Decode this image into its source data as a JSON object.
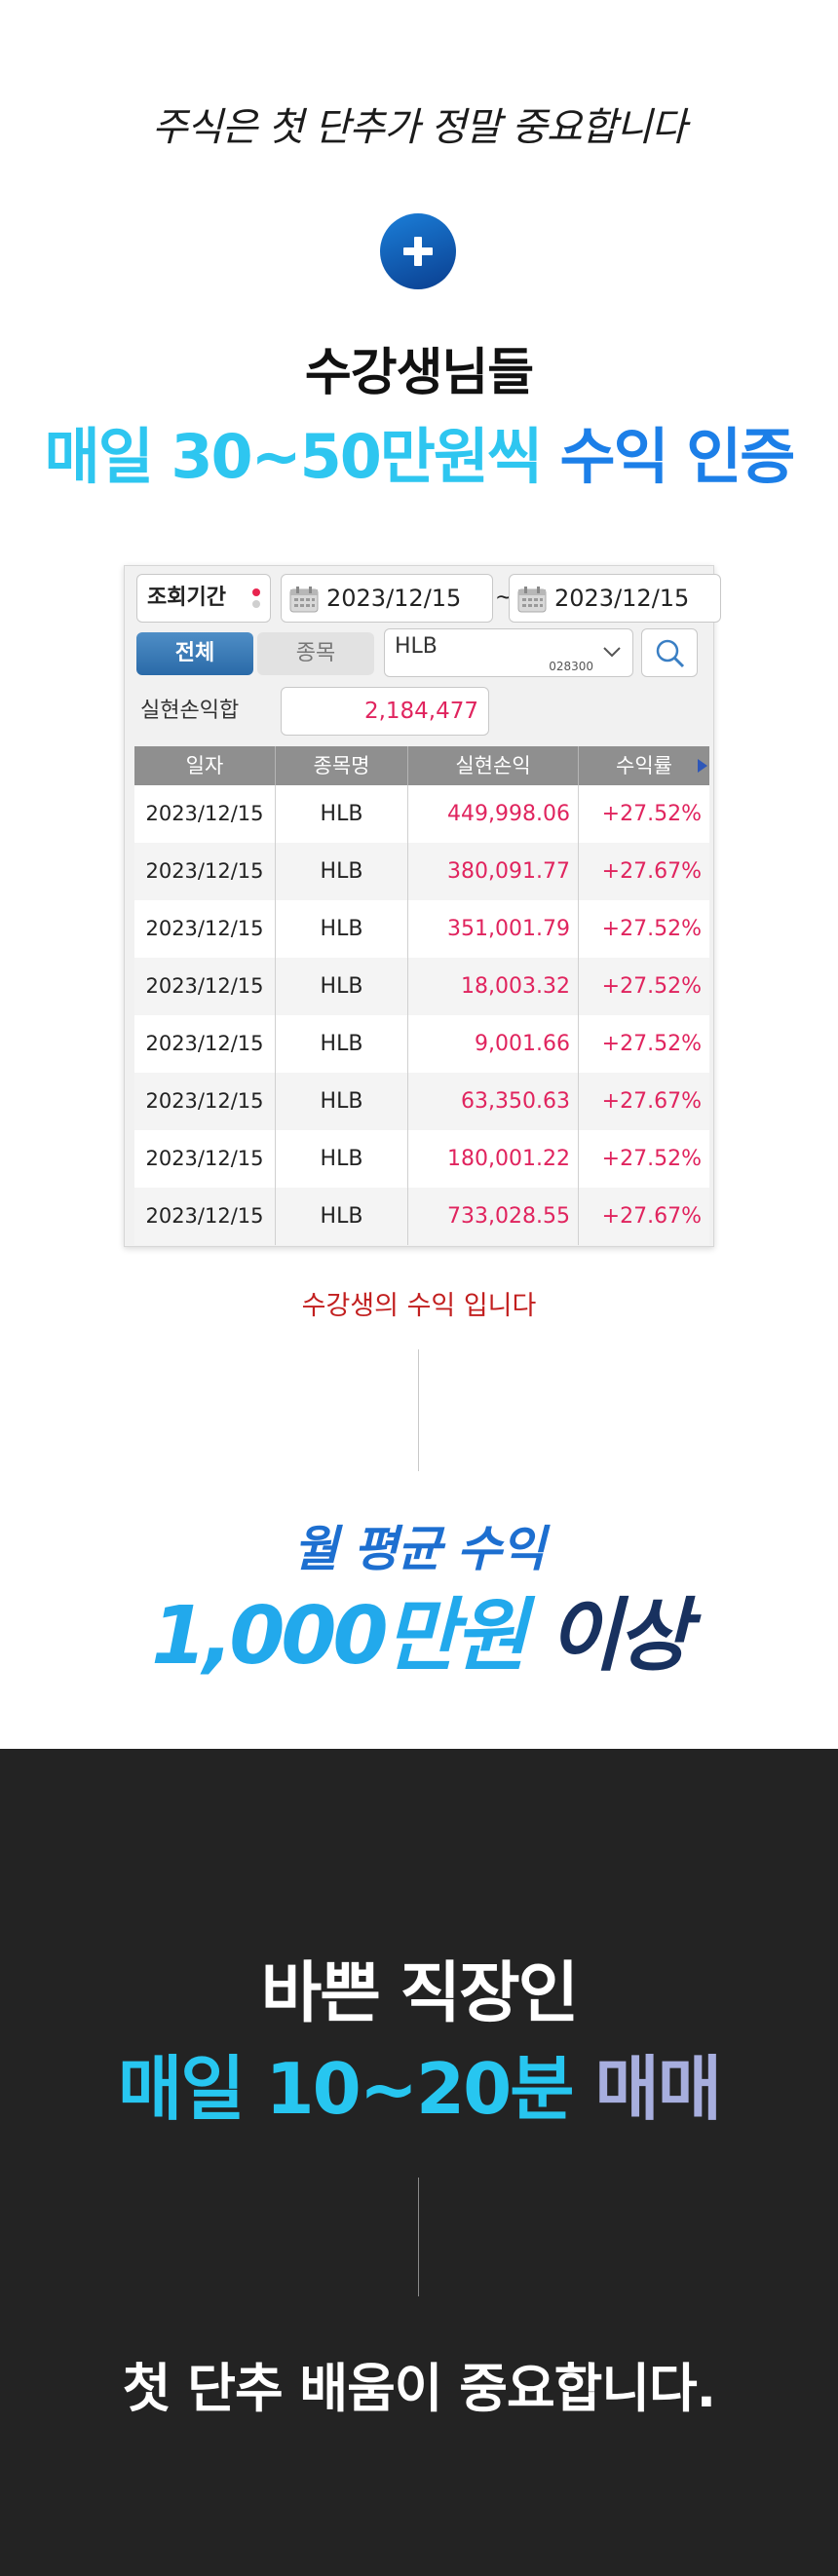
{
  "intro": {
    "headline": "주식은 첫 단추가 정말 중요합니다",
    "plus_icon": "plus-circle-icon",
    "subtitle": "수강생님들",
    "proof_part1": "매일 30~50만원씩",
    "proof_part2": " 수익 인증"
  },
  "trading_panel": {
    "period_label": "조회기간",
    "date_from": "2023/12/15",
    "date_separator": "~",
    "date_to": "2023/12/15",
    "tab_all": "전체",
    "tab_item": "종목",
    "symbol_value": "HLB",
    "symbol_code": "028300",
    "realized_pnl_label": "실현손익합",
    "realized_pnl_value": "2,184,477",
    "columns": [
      "일자",
      "종목명",
      "실현손익",
      "수익률"
    ],
    "rows": [
      {
        "date": "2023/12/15",
        "name": "HLB",
        "pnl": "449,998.06",
        "rate": "+27.52%"
      },
      {
        "date": "2023/12/15",
        "name": "HLB",
        "pnl": "380,091.77",
        "rate": "+27.67%"
      },
      {
        "date": "2023/12/15",
        "name": "HLB",
        "pnl": "351,001.79",
        "rate": "+27.52%"
      },
      {
        "date": "2023/12/15",
        "name": "HLB",
        "pnl": "18,003.32",
        "rate": "+27.52%"
      },
      {
        "date": "2023/12/15",
        "name": "HLB",
        "pnl": "9,001.66",
        "rate": "+27.52%"
      },
      {
        "date": "2023/12/15",
        "name": "HLB",
        "pnl": "63,350.63",
        "rate": "+27.67%"
      },
      {
        "date": "2023/12/15",
        "name": "HLB",
        "pnl": "180,001.22",
        "rate": "+27.52%"
      },
      {
        "date": "2023/12/15",
        "name": "HLB",
        "pnl": "733,028.55",
        "rate": "+27.67%"
      }
    ]
  },
  "caption": "수강생의 수익 입니다",
  "average": {
    "title": "월 평균 수익",
    "value_part1": "1,000만원",
    "value_part2": " 이상"
  },
  "bottom": {
    "line1": "바쁜 직장인",
    "line2_part1": "매일 10~20분",
    "line2_part2": " 매매",
    "line3": "첫 단추 배움이 중요합니다."
  },
  "colors": {
    "accent_cyan": "#2ec6f0",
    "accent_blue": "#1c7fe8",
    "profit_red": "#e0245e",
    "dark_bg": "#232323",
    "navy": "#18315f",
    "lavender": "#a7aede"
  }
}
